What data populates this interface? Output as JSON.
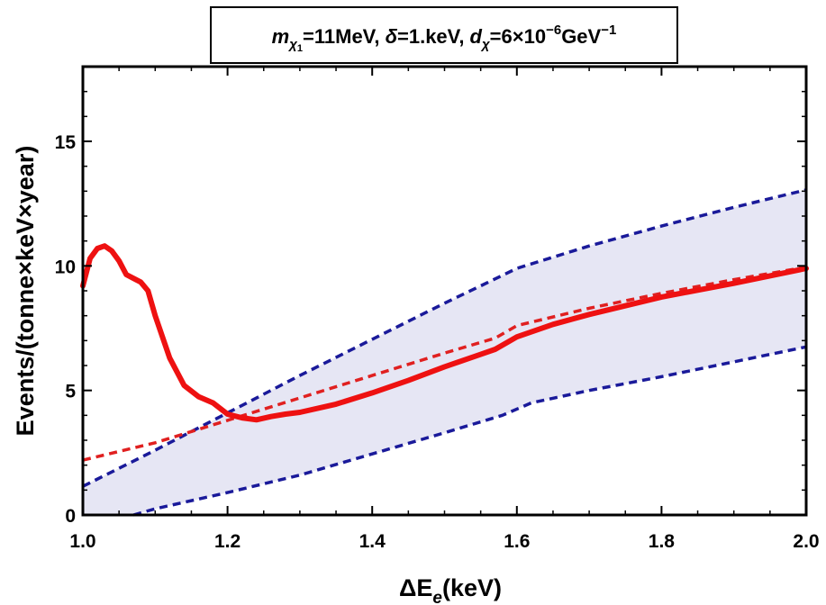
{
  "chart_data": {
    "type": "line",
    "title": {
      "parts": [
        {
          "text": "m",
          "italic": true
        },
        {
          "text": "χ",
          "italic": true,
          "sub": true
        },
        {
          "text": "1",
          "sub2": true
        },
        {
          "text": "=11MeV, "
        },
        {
          "text": "δ",
          "italic": true
        },
        {
          "text": "=1.keV, "
        },
        {
          "text": "d",
          "italic": true
        },
        {
          "text": "χ",
          "italic": true,
          "sub": true
        },
        {
          "text": "=6×10"
        },
        {
          "text": "−6",
          "sup": true
        },
        {
          "text": "GeV"
        },
        {
          "text": "−1",
          "sup": true
        }
      ]
    },
    "xlabel": {
      "main": "ΔE",
      "sub": "e",
      "rest": "(keV)"
    },
    "ylabel": "Events/(tonne×keV×year)",
    "xlim": [
      1.0,
      2.0
    ],
    "ylim": [
      0,
      18
    ],
    "xticks": [
      {
        "value": 1.0,
        "label": "1.0"
      },
      {
        "value": 1.2,
        "label": "1.2"
      },
      {
        "value": 1.4,
        "label": "1.4"
      },
      {
        "value": 1.6,
        "label": "1.6"
      },
      {
        "value": 1.8,
        "label": "1.8"
      },
      {
        "value": 2.0,
        "label": "2.0"
      }
    ],
    "yticks": [
      {
        "value": 0,
        "label": "0"
      },
      {
        "value": 5,
        "label": "5"
      },
      {
        "value": 10,
        "label": "10"
      },
      {
        "value": 15,
        "label": "15"
      }
    ],
    "band_color": "#e6e6f4",
    "series": [
      {
        "name": "upper-band",
        "style": "dashed",
        "color": "#1a1a9a",
        "x": [
          1.0,
          1.1,
          1.2,
          1.3,
          1.4,
          1.5,
          1.55,
          1.6,
          1.7,
          1.8,
          1.9,
          2.0
        ],
        "y": [
          1.15,
          2.6,
          4.1,
          5.6,
          7.05,
          8.5,
          9.2,
          9.9,
          10.8,
          11.6,
          12.35,
          13.05
        ]
      },
      {
        "name": "lower-band",
        "style": "dashed",
        "color": "#1a1a9a",
        "x": [
          1.07,
          1.1,
          1.2,
          1.3,
          1.4,
          1.5,
          1.58,
          1.62,
          1.7,
          1.8,
          1.9,
          2.0
        ],
        "y": [
          0.0,
          0.25,
          0.9,
          1.6,
          2.45,
          3.3,
          4.0,
          4.5,
          5.0,
          5.55,
          6.15,
          6.75
        ]
      },
      {
        "name": "background-model",
        "style": "dashed",
        "color": "#e02020",
        "x": [
          1.0,
          1.1,
          1.2,
          1.3,
          1.4,
          1.5,
          1.57,
          1.6,
          1.7,
          1.8,
          1.9,
          2.0
        ],
        "y": [
          2.2,
          2.9,
          3.8,
          4.7,
          5.6,
          6.5,
          7.1,
          7.6,
          8.3,
          8.9,
          9.45,
          9.95
        ]
      },
      {
        "name": "signal-plus-background",
        "style": "solid",
        "color": "#ee1111",
        "x": [
          1.0,
          1.01,
          1.02,
          1.03,
          1.04,
          1.05,
          1.06,
          1.07,
          1.08,
          1.09,
          1.1,
          1.12,
          1.14,
          1.16,
          1.18,
          1.2,
          1.22,
          1.24,
          1.26,
          1.28,
          1.3,
          1.35,
          1.4,
          1.45,
          1.5,
          1.55,
          1.57,
          1.6,
          1.65,
          1.7,
          1.8,
          1.9,
          2.0
        ],
        "y": [
          9.2,
          10.3,
          10.7,
          10.8,
          10.6,
          10.2,
          9.65,
          9.5,
          9.35,
          9.0,
          8.0,
          6.3,
          5.2,
          4.75,
          4.5,
          4.05,
          3.9,
          3.82,
          3.95,
          4.05,
          4.12,
          4.45,
          4.9,
          5.4,
          5.95,
          6.45,
          6.65,
          7.15,
          7.65,
          8.05,
          8.75,
          9.3,
          9.9
        ]
      }
    ]
  }
}
